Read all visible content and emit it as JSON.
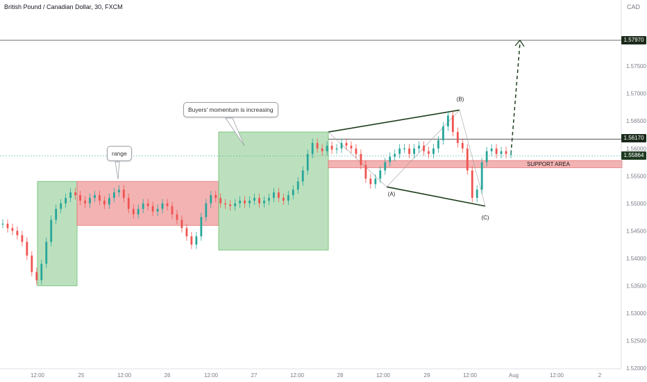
{
  "header": {
    "title": "British Pound / Canadian Dollar, 30, FXCM",
    "currency": "CAD"
  },
  "chart_data": {
    "type": "candlestick",
    "symbol": "British Pound / Canadian Dollar",
    "timeframe": "30",
    "source": "FXCM",
    "ylim": [
      1.52,
      1.581
    ],
    "y_ticks": [
      "1.57500",
      "1.57000",
      "1.56500",
      "1.56000",
      "1.55500",
      "1.55000",
      "1.54500",
      "1.54000",
      "1.53500",
      "1.53000",
      "1.52500",
      "1.52000"
    ],
    "x_ticks": [
      "12:00",
      "25",
      "12:00",
      "26",
      "12:00",
      "27",
      "12:00",
      "28",
      "12:00",
      "29",
      "12:00",
      "Aug",
      "12:00",
      "2"
    ],
    "price_labels": [
      {
        "id": "target",
        "value": "1.57970"
      },
      {
        "id": "resistance",
        "value": "1.56170"
      },
      {
        "id": "current",
        "value": "1.55864"
      }
    ],
    "price_series": [
      1.5463,
      1.5455,
      1.545,
      1.5442,
      1.543,
      1.5405,
      1.5375,
      1.536,
      1.539,
      1.543,
      1.547,
      1.549,
      1.55,
      1.551,
      1.552,
      1.5515,
      1.5505,
      1.55,
      1.551,
      1.5515,
      1.5505,
      1.5498,
      1.551,
      1.552,
      1.5525,
      1.551,
      1.549,
      1.548,
      1.549,
      1.55,
      1.5495,
      1.5485,
      1.549,
      1.55,
      1.5495,
      1.548,
      1.547,
      1.5455,
      1.544,
      1.5425,
      1.544,
      1.5475,
      1.55,
      1.5515,
      1.551,
      1.55,
      1.5498,
      1.5495,
      1.55,
      1.5505,
      1.55,
      1.5505,
      1.551,
      1.55,
      1.5505,
      1.551,
      1.552,
      1.551,
      1.5505,
      1.5515,
      1.5525,
      1.554,
      1.556,
      1.559,
      1.561,
      1.56,
      1.5595,
      1.5605,
      1.5598,
      1.56,
      1.561,
      1.5605,
      1.56,
      1.559,
      1.557,
      1.5545,
      1.5535,
      1.5545,
      1.556,
      1.5575,
      1.5585,
      1.559,
      1.56,
      1.56,
      1.559,
      1.56,
      1.5605,
      1.5595,
      1.559,
      1.56,
      1.5615,
      1.564,
      1.566,
      1.563,
      1.561,
      1.56,
      1.556,
      1.551,
      1.5525,
      1.5575,
      1.5595,
      1.56,
      1.559,
      1.5595,
      1.559,
      1.559
    ],
    "zones": [
      {
        "name": "buy-zone-1",
        "color": "green",
        "x_from": "24 10:00",
        "x_to": "25 00:00",
        "y_from": 1.535,
        "y_to": 1.554
      },
      {
        "name": "range",
        "color": "red",
        "x_from": "25 00:00",
        "x_to": "26 19:00",
        "y_from": 1.546,
        "y_to": 1.554
      },
      {
        "name": "buy-zone-2",
        "color": "green",
        "x_from": "26 19:00",
        "x_to": "27 21:00",
        "y_from": 1.5415,
        "y_to": 1.563
      },
      {
        "name": "support-area",
        "color": "red",
        "x_from": "27 21:00",
        "x_to": "end",
        "y_from": 1.5565,
        "y_to": 1.5578
      }
    ],
    "annotations": {
      "range_label": "range",
      "momentum_label": "Buyers' momentum is increasing",
      "support_label": "SUPPORT AREA",
      "wave_a": "(A)",
      "wave_b": "(B)",
      "wave_c": "(C)"
    },
    "colors": {
      "up": "#26a69a",
      "down": "#ef5350",
      "green_zone": "#a5d6a7",
      "red_zone": "#ef9a9a",
      "trend": "#1b3d1b"
    },
    "grid": false
  }
}
